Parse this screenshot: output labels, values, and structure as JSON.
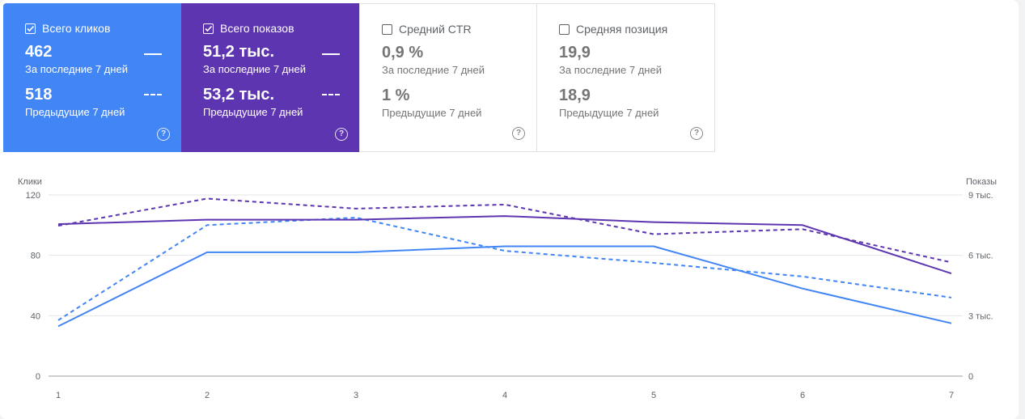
{
  "cards": [
    {
      "label": "Всего кликов",
      "checked": true,
      "value_current": "462",
      "current_label": "За последние 7 дней",
      "value_previous": "518",
      "previous_label": "Предыдущие 7 дней"
    },
    {
      "label": "Всего показов",
      "checked": true,
      "value_current": "51,2 тыс.",
      "current_label": "За последние 7 дней",
      "value_previous": "53,2 тыс.",
      "previous_label": "Предыдущие 7 дней"
    },
    {
      "label": "Средний CTR",
      "checked": false,
      "value_current": "0,9 %",
      "current_label": "За последние 7 дней",
      "value_previous": "1 %",
      "previous_label": "Предыдущие 7 дней"
    },
    {
      "label": "Средняя позиция",
      "checked": false,
      "value_current": "19,9",
      "current_label": "За последние 7 дней",
      "value_previous": "18,9",
      "previous_label": "Предыдущие 7 дней"
    }
  ],
  "help_glyph": "?",
  "colors": {
    "clicks": "#4285f4",
    "impressions": "#5e35b1",
    "grid": "#e6e6e6"
  },
  "chart_data": {
    "type": "line",
    "x": [
      1,
      2,
      3,
      4,
      5,
      6,
      7
    ],
    "y_left_label": "Клики",
    "y_right_label": "Показы",
    "y_left_ticks": [
      "0",
      "40",
      "80",
      "120"
    ],
    "y_right_ticks": [
      "0",
      "3 тыс.",
      "6 тыс.",
      "9 тыс."
    ],
    "ylim_left": [
      0,
      120
    ],
    "ylim_right": [
      0,
      9000
    ],
    "grid": true,
    "series": [
      {
        "axis": "left",
        "style": "solid",
        "color": "#4285f4",
        "values": [
          33,
          82,
          82,
          86,
          86,
          58,
          35
        ]
      },
      {
        "axis": "left",
        "style": "dashed",
        "color": "#4285f4",
        "values": [
          37,
          100,
          105,
          83,
          75,
          66,
          52
        ]
      },
      {
        "axis": "right",
        "style": "solid",
        "color": "#5e35b1",
        "values": [
          7550,
          7770,
          7770,
          7950,
          7650,
          7500,
          5100
        ]
      },
      {
        "axis": "right",
        "style": "dashed",
        "color": "#5e35b1",
        "values": [
          7470,
          8820,
          8320,
          8520,
          7050,
          7300,
          5650
        ]
      }
    ]
  }
}
